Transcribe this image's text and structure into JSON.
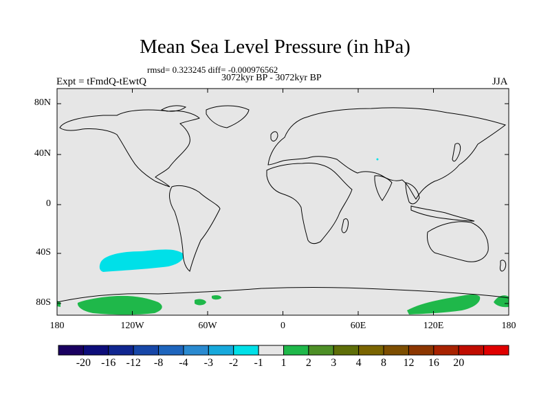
{
  "title": "Mean Sea Level Pressure (in hPa)",
  "stats": "rmsd= 0.323245 diff= -0.000976562",
  "period": "3072kyr BP - 3072kyr BP",
  "experiment": "Expt = tFmdQ-tEwtQ",
  "season": "JJA",
  "latitude_labels": [
    "80N",
    "40N",
    "0",
    "40S",
    "80S"
  ],
  "longitude_labels": [
    "180",
    "120W",
    "60W",
    "0",
    "60E",
    "120E",
    "180"
  ],
  "colorbar": {
    "colors": [
      "#1a0060",
      "#0d0d7a",
      "#102690",
      "#1747a8",
      "#1e65bd",
      "#2a8ad0",
      "#17a9dc",
      "#00e0e8",
      "#e6e6e6",
      "#1fb84a",
      "#4d8f26",
      "#5e6e08",
      "#7a6400",
      "#7d4e00",
      "#8c3600",
      "#a82200",
      "#c00c00",
      "#e00000"
    ],
    "labels": [
      "-20",
      "-16",
      "-12",
      "-8",
      "-4",
      "-3",
      "-2",
      "-1",
      "1",
      "2",
      "3",
      "4",
      "8",
      "12",
      "16",
      "20"
    ]
  },
  "map": {
    "background_color": "#e6e6e6",
    "negative_anomaly_color": "#00e0e8",
    "positive_anomaly_color": "#1fb84a"
  }
}
